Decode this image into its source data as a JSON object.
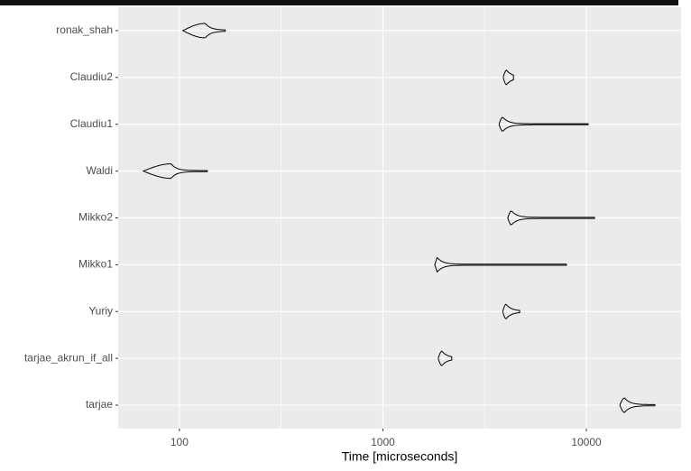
{
  "chart_data": {
    "type": "violin",
    "categories": [
      "ronak_shah",
      "Claudiu2",
      "Claudiu1",
      "Waldi",
      "Mikko2",
      "Mikko1",
      "Yuriy",
      "tarjae_akrun_if_all",
      "tarjae"
    ],
    "min": [
      104,
      3900,
      3720,
      66.5,
      4110,
      1800,
      3880,
      1870,
      14600
    ],
    "median": [
      134,
      4050,
      3880,
      91,
      4280,
      1850,
      4030,
      1950,
      15400
    ],
    "max": [
      168,
      4380,
      10200,
      137,
      10960,
      7980,
      4700,
      2180,
      21700
    ],
    "color": "#000000",
    "x_label": "Time [microseconds]",
    "xscale": "log",
    "xlim": [
      50,
      29200
    ],
    "xticks": [
      100,
      1000,
      10000
    ],
    "grid": true,
    "minor_grid": true
  }
}
